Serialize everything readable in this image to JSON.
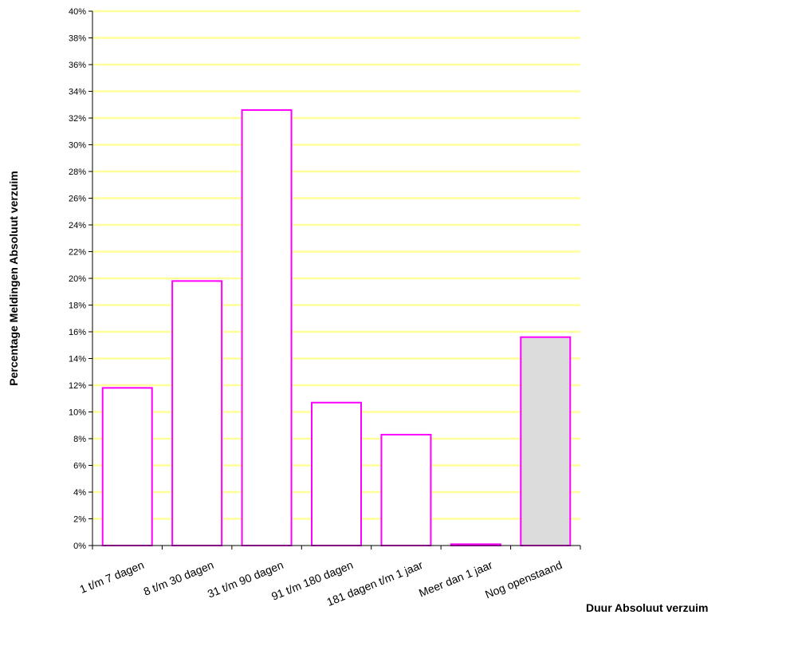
{
  "chart_data": {
    "type": "bar",
    "title": "",
    "xlabel": "Duur Absoluut verzuim",
    "ylabel": "Percentage Meldingen Absoluut verzuim",
    "categories": [
      "1 t/m 7 dagen",
      "8 t/m 30 dagen",
      "31 t/m 90 dagen",
      "91 t/m 180 dagen",
      "181 dagen t/m 1 jaar",
      "Meer dan 1 jaar",
      "Nog openstaand"
    ],
    "values": [
      11.8,
      19.8,
      32.6,
      10.7,
      8.3,
      0.1,
      15.6
    ],
    "ylim": [
      0,
      40
    ],
    "ytick_step": 2,
    "ytick_format": "%",
    "grid": true,
    "colors": {
      "grid": "#ffff99",
      "bar_edge": "#ff00ff",
      "bar_fill": "#ffffff",
      "bar_fill_highlight": "#dcdcdc",
      "axis": "#000000"
    },
    "highlight_index": 6
  }
}
